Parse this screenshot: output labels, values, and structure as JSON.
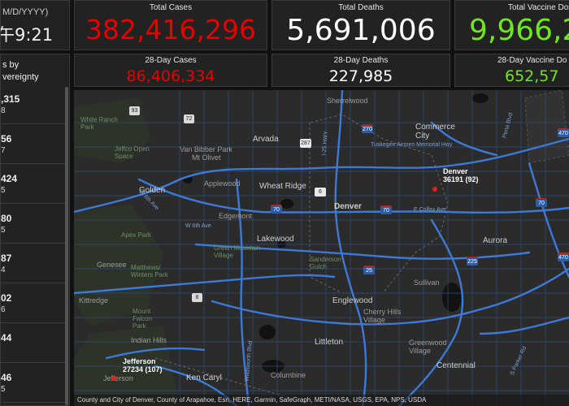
{
  "left_panel": {
    "date_format": "M/D/YYYY)",
    "time": "午9:21",
    "list_heading_line1": "s by",
    "list_heading_line2": "vereignty",
    "items": [
      {
        "value": ",315",
        "sub": "8"
      },
      {
        "value": "56",
        "sub": "7"
      },
      {
        "value": "424",
        "sub": "5"
      },
      {
        "value": "80",
        "sub": "5"
      },
      {
        "value": "87",
        "sub": "4"
      },
      {
        "value": "02",
        "sub": "6"
      },
      {
        "value": "44",
        "sub": ""
      },
      {
        "value": "46",
        "sub": "5"
      }
    ]
  },
  "stats": {
    "total_cases": {
      "label": "Total Cases",
      "value": "382,416,296",
      "color": "#e60000"
    },
    "total_deaths": {
      "label": "Total Deaths",
      "value": "5,691,006",
      "color": "#ffffff"
    },
    "total_vaccine": {
      "label": "Total Vaccine Dose",
      "value": "9,966,2",
      "color": "#70e620"
    },
    "cases_28": {
      "label": "28-Day Cases",
      "value": "86,406,334",
      "color": "#e60000"
    },
    "deaths_28": {
      "label": "28-Day Deaths",
      "value": "227,985",
      "color": "#ffffff"
    },
    "vaccine_28": {
      "label": "28-Day Vaccine Do",
      "value": "652,57",
      "color": "#70e620"
    }
  },
  "map": {
    "places": {
      "sherrelwood": "Sherrelwood",
      "white_ranch": "White Ranch\nPark",
      "arvada": "Arvada",
      "commerce_city": "Commerce\nCity",
      "jeffco_open": "Jeffco Open\nSpace",
      "van_bibber": "Van Bibber Park",
      "mt_olivet": "Mt Olivet",
      "golden": "Golden",
      "applewood": "Applewood",
      "wheat_ridge": "Wheat Ridge",
      "denver": "Denver",
      "edgemont": "Edgemont",
      "apex_park": "Apex Park",
      "lakewood": "Lakewood",
      "green_mountain": "Green Mountain\nVillage",
      "genesee": "Genesee",
      "matthews": "Matthews/\nWinters Park",
      "sanderson": "Sanderson\nGulch",
      "aurora": "Aurora",
      "sullivan": "Sullivan",
      "kittredge": "Kittredge",
      "englewood": "Englewood",
      "mount_falcon": "Mount\nFalcon\nPark",
      "cherry_hills": "Cherry Hills\nVillage",
      "indian_hills": "Indian Hills",
      "littleton": "Littleton",
      "greenwood": "Greenwood\nVillage",
      "centennial": "Centennial",
      "ken_caryl": "Ken Caryl",
      "columbine": "Columbine",
      "jefferson_small": "Jefferson",
      "tuskegee": "Tuskegee Airmen Memorial Hwy",
      "colfax": "E Colfax Ave",
      "w6th_ave": "W 6th Ave",
      "w6th_ave_2": "W 6th Ave",
      "i25_hwy": "I-25 HWY",
      "pena": "Pena Blvd",
      "wadsworth": "Wadsworth Blvd",
      "parker": "S Parker Rd"
    },
    "shields": {
      "s93": "93",
      "s72": "72",
      "s287": "287",
      "s270": "270",
      "s70a": "70",
      "s70b": "70",
      "s70c": "70",
      "s6": "6",
      "s25": "25",
      "s225": "225",
      "s8": "8",
      "s470a": "470",
      "s470b": "470"
    },
    "counties": {
      "denver": "Denver\n36191 (92)",
      "jefferson": "Jefferson\n27234 (107)"
    },
    "attribution": "County and City of Denver, County of Arapahoe, Esri, HERE, Garmin, SafeGraph, METI/NASA, USGS, EPA, NPS, USDA"
  }
}
